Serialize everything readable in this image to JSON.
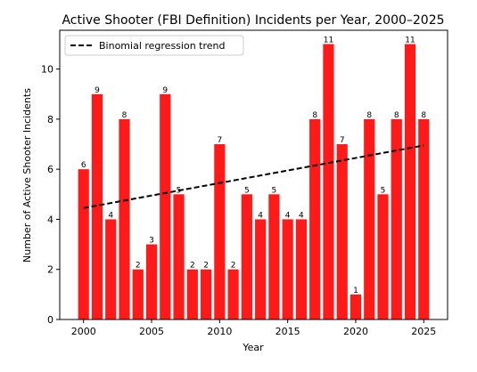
{
  "chart_data": {
    "type": "bar",
    "title": "Active Shooter (FBI Definition) Incidents per Year, 2000–2025",
    "xlabel": "Year",
    "ylabel": "Number of Active Shooter Incidents",
    "x": [
      2000,
      2001,
      2002,
      2003,
      2004,
      2005,
      2006,
      2007,
      2008,
      2009,
      2010,
      2011,
      2012,
      2013,
      2014,
      2015,
      2016,
      2017,
      2018,
      2019,
      2020,
      2021,
      2022,
      2023,
      2024,
      2025
    ],
    "values": [
      6,
      9,
      4,
      8,
      2,
      3,
      9,
      5,
      2,
      2,
      7,
      2,
      5,
      4,
      5,
      4,
      4,
      8,
      11,
      7,
      1,
      8,
      5,
      8,
      11,
      8
    ],
    "xlim": [
      1998.25,
      2026.75
    ],
    "ylim": [
      0,
      11.55
    ],
    "xticks": [
      2000,
      2005,
      2010,
      2015,
      2020,
      2025
    ],
    "yticks": [
      0,
      2,
      4,
      6,
      8,
      10
    ],
    "bar_color": "#ff1a1a",
    "trend": {
      "name": "Binomial regression trend",
      "x": [
        2000,
        2025
      ],
      "y": [
        4.45,
        6.95
      ],
      "color": "#000000",
      "style": "dashed"
    },
    "legend": {
      "location": "upper-left",
      "entries": [
        "Binomial regression trend"
      ]
    },
    "grid": false
  }
}
